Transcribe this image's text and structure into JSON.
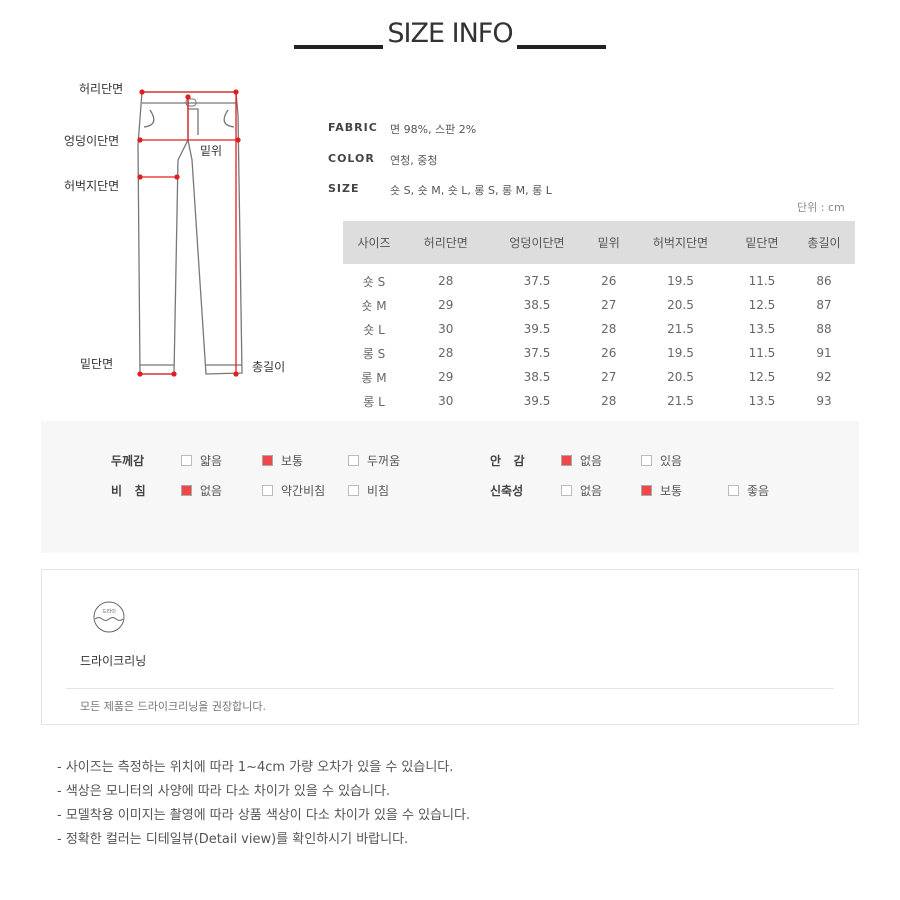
{
  "title": "SIZE INFO",
  "diagram": {
    "waist": "허리단면",
    "hip": "엉덩이단면",
    "thigh": "허벅지단면",
    "rise": "밑위",
    "hem": "밑단면",
    "length": "총길이"
  },
  "specs": [
    {
      "k": "FABRIC",
      "v": "면 98%, 스판 2%"
    },
    {
      "k": "COLOR",
      "v": "연청, 중청"
    },
    {
      "k": "SIZE",
      "v": "숏 S, 숏 M, 숏 L, 롱 S, 롱 M, 롱 L"
    }
  ],
  "unit": "단위 : cm",
  "table": {
    "headers": [
      "사이즈",
      "허리단면",
      "엉덩이단면",
      "밑위",
      "허벅지단면",
      "밑단면",
      "총길이"
    ],
    "rows": [
      [
        "숏 S",
        "28",
        "37.5",
        "26",
        "19.5",
        "11.5",
        "86"
      ],
      [
        "숏 M",
        "29",
        "38.5",
        "27",
        "20.5",
        "12.5",
        "87"
      ],
      [
        "숏 L",
        "30",
        "39.5",
        "28",
        "21.5",
        "13.5",
        "88"
      ],
      [
        "롱 S",
        "28",
        "37.5",
        "26",
        "19.5",
        "11.5",
        "91"
      ],
      [
        "롱 M",
        "29",
        "38.5",
        "27",
        "20.5",
        "12.5",
        "92"
      ],
      [
        "롱 L",
        "30",
        "39.5",
        "28",
        "21.5",
        "13.5",
        "93"
      ]
    ]
  },
  "features": [
    {
      "label": "두께감",
      "options": [
        {
          "t": "얇음",
          "on": false
        },
        {
          "t": "보통",
          "on": true
        },
        {
          "t": "두꺼움",
          "on": false
        }
      ]
    },
    {
      "label": "안   감",
      "options": [
        {
          "t": "없음",
          "on": true
        },
        {
          "t": "있음",
          "on": false
        }
      ]
    },
    {
      "label": "비   침",
      "options": [
        {
          "t": "없음",
          "on": true
        },
        {
          "t": "약간비침",
          "on": false
        },
        {
          "t": "비침",
          "on": false
        }
      ]
    },
    {
      "label": "신축성",
      "options": [
        {
          "t": "없음",
          "on": false
        },
        {
          "t": "보통",
          "on": true
        },
        {
          "t": "좋음",
          "on": false
        }
      ]
    }
  ],
  "care": {
    "icon_text": "드라이",
    "label": "드라이크리닝",
    "note": "모든 제품은 드라이크리닝을 권장합니다."
  },
  "notes": [
    "- 사이즈는 측정하는 위치에 따라 1~4cm 가량 오차가 있을 수 있습니다.",
    "- 색상은 모니터의 사양에 따라 다소 차이가 있을 수 있습니다.",
    "- 모델착용 이미지는 촬영에 따라 상품 색상이 다소 차이가 있을 수 있습니다.",
    "- 정확한 컬러는 디테일뷰(Detail view)를 확인하시기 바랍니다."
  ],
  "colors": {
    "checked": "#f04848",
    "marker": "#e02020"
  }
}
